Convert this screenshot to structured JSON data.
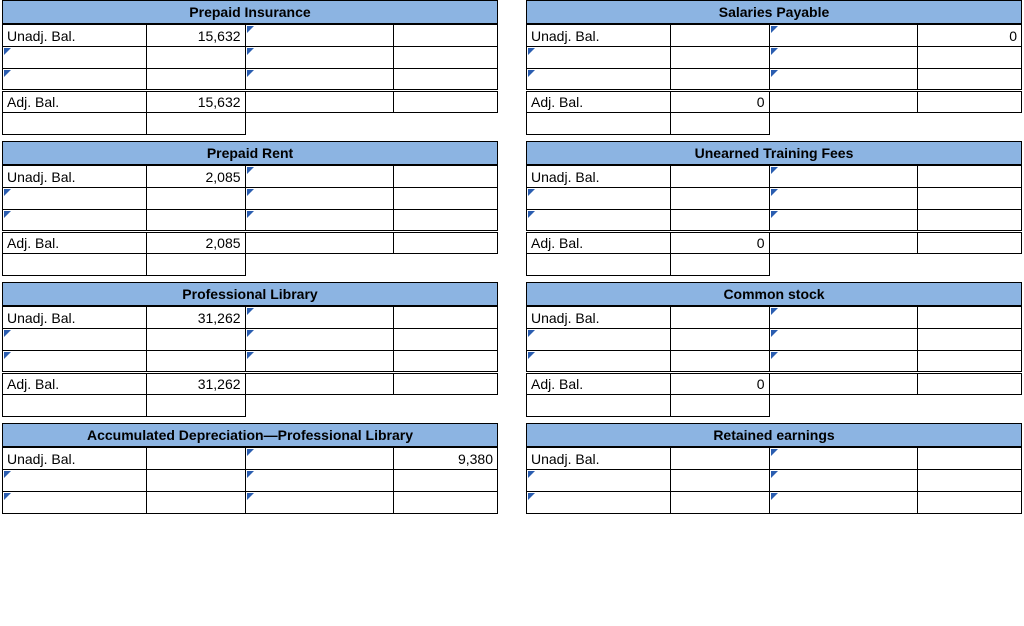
{
  "colors": {
    "header_bg": "#8cb4e2",
    "border": "#000000",
    "triangle": "#2a5db0",
    "page_bg": "#ffffff"
  },
  "font": {
    "family": "Arial",
    "size_pt": 10,
    "title_weight": "bold"
  },
  "labels": {
    "unadj": "Unadj. Bal.",
    "adj": "Adj. Bal."
  },
  "left": [
    {
      "title": "Prepaid Insurance",
      "rows": [
        {
          "label_key": "unadj",
          "debit": "15,632",
          "credit": ""
        },
        {
          "label_key": null,
          "debit": "",
          "credit": ""
        },
        {
          "label_key": null,
          "debit": "",
          "credit": ""
        }
      ],
      "totals": {
        "label_key": "adj",
        "debit": "15,632",
        "credit": ""
      }
    },
    {
      "title": "Prepaid Rent",
      "rows": [
        {
          "label_key": "unadj",
          "debit": "2,085",
          "credit": ""
        },
        {
          "label_key": null,
          "debit": "",
          "credit": ""
        },
        {
          "label_key": null,
          "debit": "",
          "credit": ""
        }
      ],
      "totals": {
        "label_key": "adj",
        "debit": "2,085",
        "credit": ""
      }
    },
    {
      "title": "Professional Library",
      "rows": [
        {
          "label_key": "unadj",
          "debit": "31,262",
          "credit": ""
        },
        {
          "label_key": null,
          "debit": "",
          "credit": ""
        },
        {
          "label_key": null,
          "debit": "",
          "credit": ""
        }
      ],
      "totals": {
        "label_key": "adj",
        "debit": "31,262",
        "credit": ""
      }
    },
    {
      "title": "Accumulated Depreciation—Professional Library",
      "rows": [
        {
          "label_key": "unadj",
          "debit": "",
          "credit": "9,380"
        },
        {
          "label_key": null,
          "debit": "",
          "credit": ""
        },
        {
          "label_key": null,
          "debit": "",
          "credit": ""
        }
      ],
      "totals": null
    }
  ],
  "right": [
    {
      "title": "Salaries Payable",
      "rows": [
        {
          "label_key": "unadj",
          "debit": "",
          "credit": "0"
        },
        {
          "label_key": null,
          "debit": "",
          "credit": ""
        },
        {
          "label_key": null,
          "debit": "",
          "credit": ""
        }
      ],
      "totals": {
        "label_key": "adj",
        "debit": "0",
        "credit": ""
      }
    },
    {
      "title": "Unearned Training Fees",
      "rows": [
        {
          "label_key": "unadj",
          "debit": "",
          "credit": ""
        },
        {
          "label_key": null,
          "debit": "",
          "credit": ""
        },
        {
          "label_key": null,
          "debit": "",
          "credit": ""
        }
      ],
      "totals": {
        "label_key": "adj",
        "debit": "0",
        "credit": ""
      }
    },
    {
      "title": "Common stock",
      "rows": [
        {
          "label_key": "unadj",
          "debit": "",
          "credit": ""
        },
        {
          "label_key": null,
          "debit": "",
          "credit": ""
        },
        {
          "label_key": null,
          "debit": "",
          "credit": ""
        }
      ],
      "totals": {
        "label_key": "adj",
        "debit": "0",
        "credit": ""
      }
    },
    {
      "title": "Retained earnings",
      "rows": [
        {
          "label_key": "unadj",
          "debit": "",
          "credit": ""
        },
        {
          "label_key": null,
          "debit": "",
          "credit": ""
        },
        {
          "label_key": null,
          "debit": "",
          "credit": ""
        }
      ],
      "totals": null
    }
  ]
}
